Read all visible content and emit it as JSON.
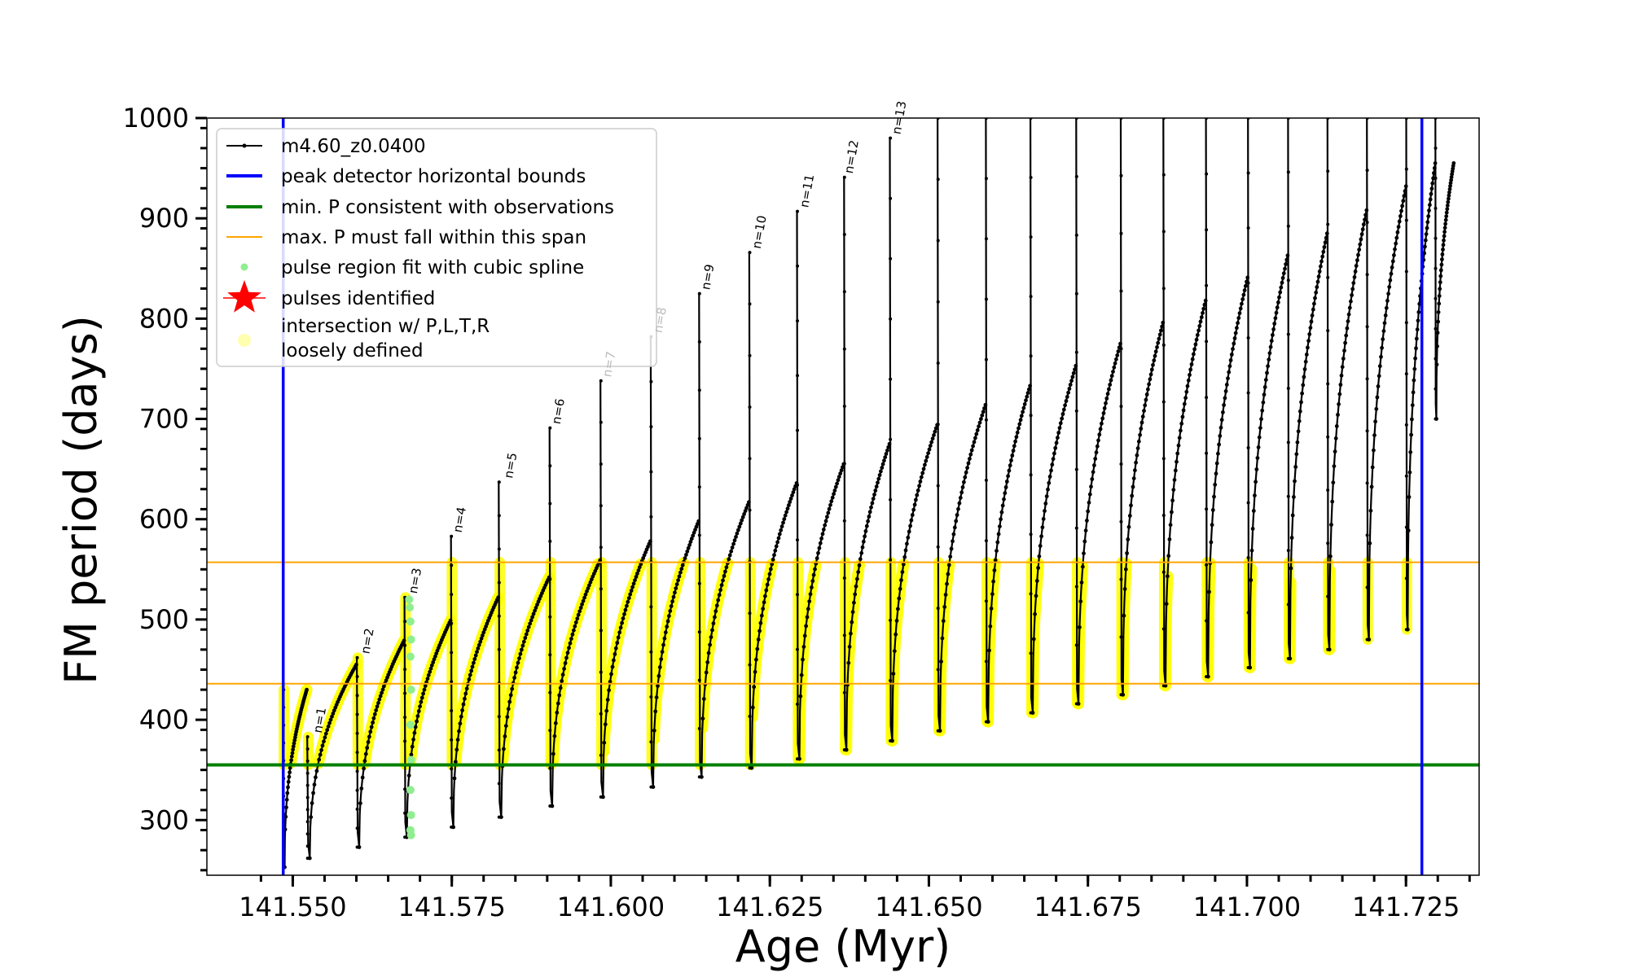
{
  "chart_data": {
    "type": "line",
    "xlabel": "Age (Myr)",
    "ylabel": "FM period (days)",
    "xlim": [
      141.5365,
      141.7365
    ],
    "ylim": [
      245,
      1000
    ],
    "x_ticks": [
      141.55,
      141.575,
      141.6,
      141.625,
      141.65,
      141.675,
      141.7,
      141.725
    ],
    "x_tick_labels": [
      "141.550",
      "141.575",
      "141.600",
      "141.625",
      "141.650",
      "141.675",
      "141.700",
      "141.725"
    ],
    "y_ticks": [
      300,
      400,
      500,
      600,
      700,
      800,
      900,
      1000
    ],
    "y_tick_labels": [
      "300",
      "400",
      "500",
      "600",
      "700",
      "800",
      "900",
      "1000"
    ],
    "grid": false,
    "legend_position": "top-left",
    "legend": [
      {
        "label": "m4.60_z0.0400",
        "color": "#000000",
        "marker": "line-dot"
      },
      {
        "label": "peak detector horizontal bounds",
        "color": "#0000ff",
        "marker": "line"
      },
      {
        "label": "min. P consistent with observations",
        "color": "#008000",
        "marker": "line"
      },
      {
        "label": "max. P must fall within this span",
        "color": "#ffa500",
        "marker": "thin-line"
      },
      {
        "label": "pulse region fit with cubic spline",
        "color": "#90ee90",
        "marker": "dot"
      },
      {
        "label": "pulses identified",
        "color": "#ff0000",
        "marker": "star"
      },
      {
        "label": "intersection w/ P,L,T,R\nloosely defined",
        "color": "#ffffb0",
        "marker": "circle"
      }
    ],
    "vertical_lines": [
      {
        "x": 141.5485,
        "color": "#0000ff"
      },
      {
        "x": 141.7275,
        "color": "#0000ff"
      }
    ],
    "horizontal_lines": [
      {
        "y": 355,
        "color": "#008000"
      },
      {
        "y": 436,
        "color": "#ffa500"
      },
      {
        "y": 557,
        "color": "#ffa500"
      }
    ],
    "pulse_labels": [
      {
        "label": "n=1",
        "x": 141.554,
        "y": 383,
        "color": "#000000"
      },
      {
        "label": "n=2",
        "x": 141.5615,
        "y": 462,
        "color": "#000000"
      },
      {
        "label": "n=3",
        "x": 141.569,
        "y": 522,
        "color": "#000000"
      },
      {
        "label": "n=4",
        "x": 141.576,
        "y": 583,
        "color": "#000000"
      },
      {
        "label": "n=5",
        "x": 141.584,
        "y": 637,
        "color": "#000000"
      },
      {
        "label": "n=6",
        "x": 141.5915,
        "y": 691,
        "color": "#000000"
      },
      {
        "label": "n=7",
        "x": 141.5995,
        "y": 738,
        "color": "#bbbbbb"
      },
      {
        "label": "n=8",
        "x": 141.6075,
        "y": 782,
        "color": "#bbbbbb"
      },
      {
        "label": "n=9",
        "x": 141.615,
        "y": 825,
        "color": "#000000"
      },
      {
        "label": "n=10",
        "x": 141.623,
        "y": 866,
        "color": "#000000"
      },
      {
        "label": "n=11",
        "x": 141.6305,
        "y": 907,
        "color": "#000000"
      },
      {
        "label": "n=12",
        "x": 141.6375,
        "y": 941,
        "color": "#000000"
      },
      {
        "label": "n=13",
        "x": 141.645,
        "y": 980,
        "color": "#000000"
      }
    ],
    "series": [
      {
        "name": "m4.60_z0.0400",
        "color": "#000000",
        "pulses": [
          {
            "x0": 141.5485,
            "x1": 141.5522,
            "ymin": 253,
            "ypeak": 430,
            "spike": 430
          },
          {
            "x0": 141.5522,
            "x1": 141.56,
            "ymin": 262,
            "ypeak": 455,
            "spike": 383
          },
          {
            "x0": 141.56,
            "x1": 141.5675,
            "ymin": 273,
            "ypeak": 479,
            "spike": 462
          },
          {
            "x0": 141.5675,
            "x1": 141.5748,
            "ymin": 283,
            "ypeak": 499,
            "spike": 522
          },
          {
            "x0": 141.5748,
            "x1": 141.5823,
            "ymin": 293,
            "ypeak": 522,
            "spike": 583
          },
          {
            "x0": 141.5823,
            "x1": 141.5903,
            "ymin": 303,
            "ypeak": 542,
            "spike": 637
          },
          {
            "x0": 141.5903,
            "x1": 141.5983,
            "ymin": 314,
            "ypeak": 559,
            "spike": 691
          },
          {
            "x0": 141.5983,
            "x1": 141.6062,
            "ymin": 323,
            "ypeak": 578,
            "spike": 738
          },
          {
            "x0": 141.6062,
            "x1": 141.6138,
            "ymin": 333,
            "ypeak": 598,
            "spike": 782
          },
          {
            "x0": 141.6138,
            "x1": 141.6217,
            "ymin": 343,
            "ypeak": 617,
            "spike": 825
          },
          {
            "x0": 141.6217,
            "x1": 141.6292,
            "ymin": 352,
            "ypeak": 636,
            "spike": 866
          },
          {
            "x0": 141.6292,
            "x1": 141.6366,
            "ymin": 361,
            "ypeak": 655,
            "spike": 907
          },
          {
            "x0": 141.6366,
            "x1": 141.6438,
            "ymin": 370,
            "ypeak": 675,
            "spike": 941
          },
          {
            "x0": 141.6438,
            "x1": 141.6513,
            "ymin": 379,
            "ypeak": 694,
            "spike": 980
          },
          {
            "x0": 141.6513,
            "x1": 141.6589,
            "ymin": 389,
            "ypeak": 714,
            "spike": 1000
          },
          {
            "x0": 141.6589,
            "x1": 141.6659,
            "ymin": 398,
            "ypeak": 733,
            "spike": 1000
          },
          {
            "x0": 141.6659,
            "x1": 141.6731,
            "ymin": 407,
            "ypeak": 753,
            "spike": 1000
          },
          {
            "x0": 141.6731,
            "x1": 141.6801,
            "ymin": 416,
            "ypeak": 775,
            "spike": 1000
          },
          {
            "x0": 141.6801,
            "x1": 141.6868,
            "ymin": 425,
            "ypeak": 796,
            "spike": 1000
          },
          {
            "x0": 141.6868,
            "x1": 141.6935,
            "ymin": 434,
            "ypeak": 818,
            "spike": 1000
          },
          {
            "x0": 141.6935,
            "x1": 141.7001,
            "ymin": 443,
            "ypeak": 841,
            "spike": 1000
          },
          {
            "x0": 141.7001,
            "x1": 141.7064,
            "ymin": 452,
            "ypeak": 863,
            "spike": 1000
          },
          {
            "x0": 141.7064,
            "x1": 141.7126,
            "ymin": 461,
            "ypeak": 885,
            "spike": 1000
          },
          {
            "x0": 141.7126,
            "x1": 141.7188,
            "ymin": 470,
            "ypeak": 908,
            "spike": 1000
          },
          {
            "x0": 141.7188,
            "x1": 141.725,
            "ymin": 480,
            "ypeak": 932,
            "spike": 1000
          },
          {
            "x0": 141.725,
            "x1": 141.7296,
            "ymin": 490,
            "ypeak": 955,
            "spike": 1000
          },
          {
            "x0": 141.7296,
            "x1": 141.7325,
            "ymin": 700,
            "ypeak": 955,
            "spike": 1000
          }
        ]
      },
      {
        "name": "intersection w/ P,L,T,R loosely defined",
        "color": "#ffff00",
        "ymin": 355,
        "ymax": 557
      },
      {
        "name": "pulse region fit with cubic spline",
        "color": "#90ee90",
        "points": [
          {
            "x": 141.5683,
            "y": 520
          },
          {
            "x": 141.5684,
            "y": 512
          },
          {
            "x": 141.5685,
            "y": 498
          },
          {
            "x": 141.5686,
            "y": 480
          },
          {
            "x": 141.5685,
            "y": 463
          },
          {
            "x": 141.5686,
            "y": 430
          },
          {
            "x": 141.5685,
            "y": 395
          },
          {
            "x": 141.5686,
            "y": 360
          },
          {
            "x": 141.5685,
            "y": 330
          },
          {
            "x": 141.5686,
            "y": 305
          },
          {
            "x": 141.5685,
            "y": 290
          },
          {
            "x": 141.5686,
            "y": 285
          }
        ]
      }
    ]
  }
}
